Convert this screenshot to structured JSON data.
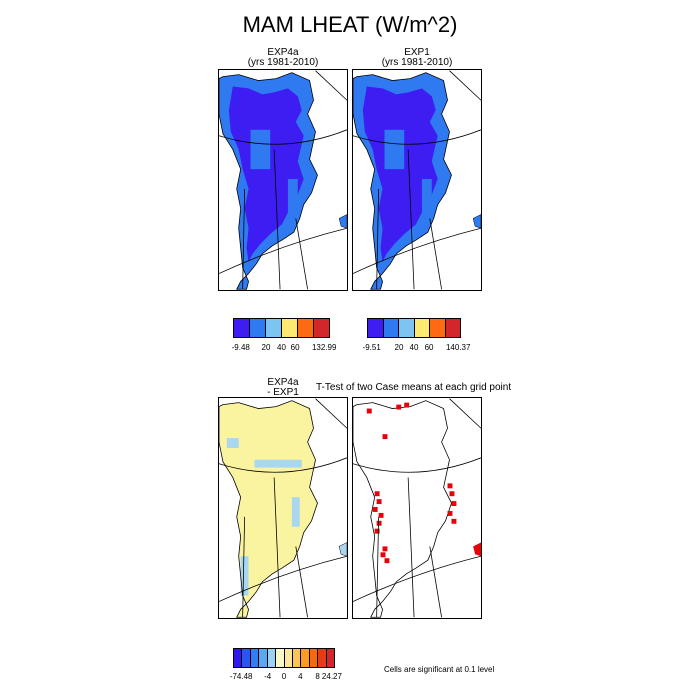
{
  "title": "MAM LHEAT (W/m^2)",
  "panels": [
    {
      "id": "exp4a",
      "title_line1": "EXP4a",
      "title_line2": "(yrs 1981-2010)"
    },
    {
      "id": "exp1",
      "title_line1": "EXP1",
      "title_line2": "(yrs 1981-2010)"
    },
    {
      "id": "diff",
      "title_line1": "EXP4a",
      "title_line2": "- EXP1"
    },
    {
      "id": "ttest",
      "title_line1": "T-Test of two Case means at each grid point"
    }
  ],
  "colorbars": [
    {
      "id": "exp4a",
      "colors": [
        "#3d1df2",
        "#2f7af0",
        "#7ec4f2",
        "#fde872",
        "#fd6a13",
        "#d3262a"
      ],
      "labels": [
        "-9.48",
        "20",
        "40",
        "60",
        "132.99"
      ]
    },
    {
      "id": "exp1",
      "colors": [
        "#3d1df2",
        "#2f7af0",
        "#7ec4f2",
        "#fde872",
        "#fd6a13",
        "#d3262a"
      ],
      "labels": [
        "-9.51",
        "20",
        "40",
        "60",
        "140.37"
      ]
    },
    {
      "id": "diff",
      "colors": [
        "#3018f0",
        "#2a55ee",
        "#2f7ff0",
        "#5aa7f2",
        "#9dd0f2",
        "#fbf8c8",
        "#fde79a",
        "#fdc456",
        "#fd9a28",
        "#f46a12",
        "#e33d18",
        "#d3262a"
      ],
      "labels": [
        "-74.48",
        "-4",
        "0",
        "4",
        "8",
        "24.27"
      ]
    }
  ],
  "legend_note": "Cells are significant at 0.1 level",
  "colors": {
    "ice_interior": "#3d1df2",
    "coastal_cells": "#2f7af0",
    "diff_fill": "#faf3a0",
    "diff_negative": "#a9d7f0",
    "significant": "#e8000b"
  }
}
